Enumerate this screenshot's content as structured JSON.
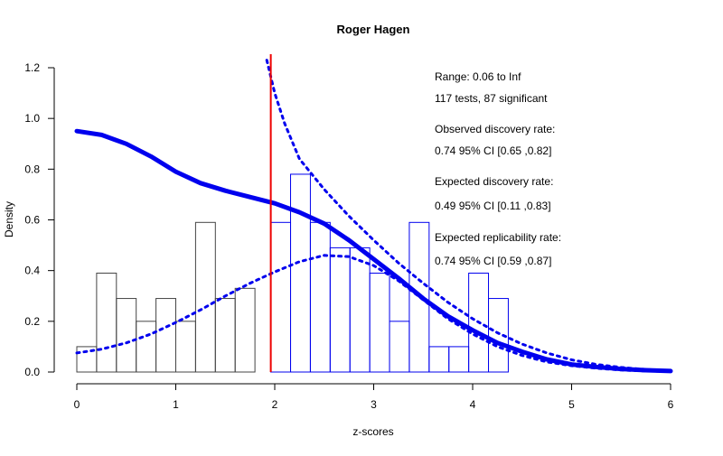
{
  "chart_data": {
    "type": "histogram",
    "title": "Roger Hagen",
    "xlabel": "z-scores",
    "ylabel": "Density",
    "xlim": [
      0,
      6
    ],
    "ylim": [
      0,
      1.2
    ],
    "x_ticks": [
      "0",
      "1",
      "2",
      "3",
      "4",
      "5",
      "6"
    ],
    "y_ticks": [
      "0.0",
      "0.2",
      "0.4",
      "0.6",
      "0.8",
      "1.0",
      "1.2"
    ],
    "grid": false,
    "legend": "none",
    "bin_width": 0.2,
    "bins_nonsignificant": [
      {
        "x0": 0.0,
        "y": 0.1
      },
      {
        "x0": 0.2,
        "y": 0.39
      },
      {
        "x0": 0.4,
        "y": 0.29
      },
      {
        "x0": 0.6,
        "y": 0.2
      },
      {
        "x0": 0.8,
        "y": 0.29
      },
      {
        "x0": 1.0,
        "y": 0.2
      },
      {
        "x0": 1.2,
        "y": 0.59
      },
      {
        "x0": 1.4,
        "y": 0.29
      },
      {
        "x0": 1.6,
        "y": 0.33
      }
    ],
    "bins_significant": [
      {
        "x0": 1.96,
        "x1": 2.16,
        "y": 0.59
      },
      {
        "x0": 2.16,
        "x1": 2.36,
        "y": 0.78
      },
      {
        "x0": 2.36,
        "x1": 2.56,
        "y": 0.59
      },
      {
        "x0": 2.56,
        "x1": 2.76,
        "y": 0.49
      },
      {
        "x0": 2.76,
        "x1": 2.96,
        "y": 0.49
      },
      {
        "x0": 2.96,
        "x1": 3.16,
        "y": 0.39
      },
      {
        "x0": 3.16,
        "x1": 3.36,
        "y": 0.2
      },
      {
        "x0": 3.36,
        "x1": 3.56,
        "y": 0.59
      },
      {
        "x0": 3.56,
        "x1": 3.76,
        "y": 0.1
      },
      {
        "x0": 3.76,
        "x1": 3.96,
        "y": 0.1
      },
      {
        "x0": 3.96,
        "x1": 4.16,
        "y": 0.39
      },
      {
        "x0": 4.16,
        "x1": 4.36,
        "y": 0.29
      }
    ],
    "significance_threshold": 1.96,
    "curve_solid": [
      [
        0.0,
        0.95
      ],
      [
        0.25,
        0.935
      ],
      [
        0.5,
        0.9
      ],
      [
        0.75,
        0.85
      ],
      [
        1.0,
        0.79
      ],
      [
        1.25,
        0.745
      ],
      [
        1.5,
        0.715
      ],
      [
        1.75,
        0.69
      ],
      [
        2.0,
        0.665
      ],
      [
        2.25,
        0.63
      ],
      [
        2.5,
        0.585
      ],
      [
        2.75,
        0.52
      ],
      [
        3.0,
        0.445
      ],
      [
        3.25,
        0.37
      ],
      [
        3.5,
        0.29
      ],
      [
        3.75,
        0.22
      ],
      [
        4.0,
        0.165
      ],
      [
        4.25,
        0.115
      ],
      [
        4.5,
        0.08
      ],
      [
        4.75,
        0.05
      ],
      [
        5.0,
        0.03
      ],
      [
        5.25,
        0.02
      ],
      [
        5.5,
        0.012
      ],
      [
        5.75,
        0.007
      ],
      [
        6.0,
        0.004
      ]
    ],
    "curve_dotted_lower": [
      [
        0.0,
        0.075
      ],
      [
        0.25,
        0.09
      ],
      [
        0.5,
        0.115
      ],
      [
        0.75,
        0.15
      ],
      [
        1.0,
        0.195
      ],
      [
        1.25,
        0.245
      ],
      [
        1.5,
        0.3
      ],
      [
        1.75,
        0.35
      ],
      [
        2.0,
        0.395
      ],
      [
        2.25,
        0.435
      ],
      [
        2.5,
        0.46
      ],
      [
        2.75,
        0.455
      ],
      [
        3.0,
        0.42
      ],
      [
        3.25,
        0.36
      ],
      [
        3.5,
        0.285
      ],
      [
        3.75,
        0.21
      ],
      [
        4.0,
        0.15
      ],
      [
        4.25,
        0.1
      ],
      [
        4.5,
        0.065
      ],
      [
        4.75,
        0.04
      ],
      [
        5.0,
        0.025
      ],
      [
        5.25,
        0.015
      ],
      [
        5.5,
        0.008
      ],
      [
        5.75,
        0.004
      ],
      [
        6.0,
        0.002
      ]
    ],
    "curve_dotted_upper": [
      [
        1.92,
        1.23
      ],
      [
        2.0,
        1.1
      ],
      [
        2.1,
        0.98
      ],
      [
        2.25,
        0.84
      ],
      [
        2.5,
        0.72
      ],
      [
        2.75,
        0.615
      ],
      [
        3.0,
        0.52
      ],
      [
        3.25,
        0.43
      ],
      [
        3.5,
        0.35
      ],
      [
        3.75,
        0.275
      ],
      [
        4.0,
        0.21
      ],
      [
        4.25,
        0.155
      ],
      [
        4.5,
        0.11
      ],
      [
        4.75,
        0.075
      ],
      [
        5.0,
        0.048
      ],
      [
        5.25,
        0.03
      ],
      [
        5.5,
        0.018
      ],
      [
        5.75,
        0.01
      ],
      [
        6.0,
        0.005
      ]
    ],
    "colors": {
      "curve": "#0000ee",
      "threshold": "#ee0000",
      "bar_nonsig": "#444444",
      "bar_sig": "#0000ee"
    },
    "annotations": [
      "Range: 0.06 to Inf",
      "117 tests, 87 significant",
      "Observed discovery rate:",
      "0.74  95% CI [0.65 ,0.82]",
      "Expected discovery rate:",
      "0.49  95% CI [0.11 ,0.83]",
      "Expected replicability rate:",
      "0.74  95% CI [0.59 ,0.87]"
    ]
  }
}
